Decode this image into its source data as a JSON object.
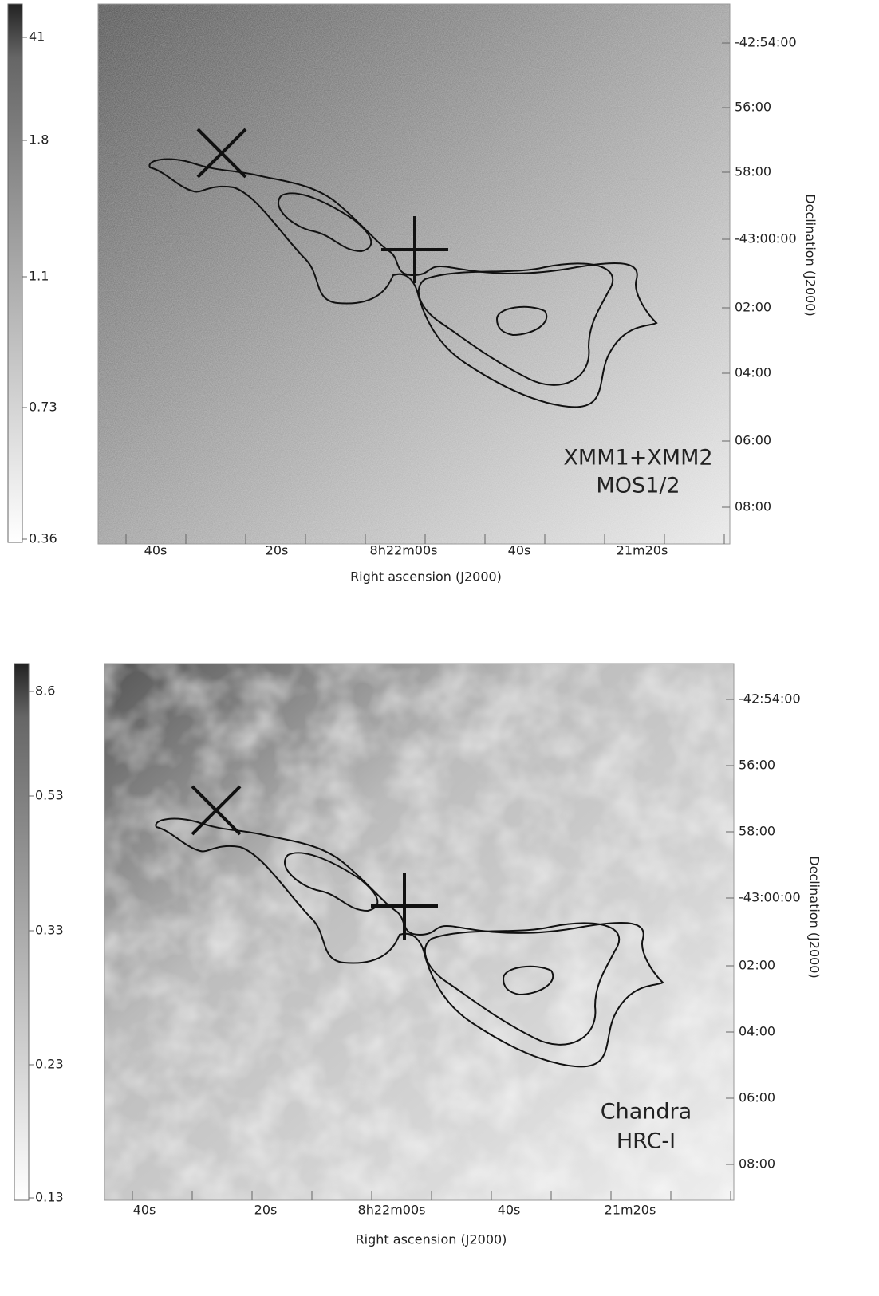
{
  "panels": [
    {
      "colorbar": [
        "41",
        "1.8",
        "1.1",
        "0.73",
        "0.36"
      ],
      "x_ticks": [
        "40s",
        "20s",
        "8h22m00s",
        "40s",
        "21m20s"
      ],
      "x_label": "Right ascension (J2000)",
      "y_ticks": [
        "-42:54:00",
        "56:00",
        "58:00",
        "-43:00:00",
        "02:00",
        "04:00",
        "06:00",
        "08:00"
      ],
      "y_label": "Declination (J2000)",
      "label": [
        "XMM1+XMM2",
        "MOS1/2"
      ]
    },
    {
      "colorbar": [
        "8.6",
        "0.53",
        "0.33",
        "0.23",
        "0.13"
      ],
      "x_ticks": [
        "40s",
        "20s",
        "8h22m00s",
        "40s",
        "21m20s"
      ],
      "x_label": "Right ascension (J2000)",
      "y_ticks": [
        "-42:54:00",
        "56:00",
        "58:00",
        "-43:00:00",
        "02:00",
        "04:00",
        "06:00",
        "08:00"
      ],
      "y_label": "Declination (J2000)",
      "label": [
        "Chandra",
        "HRC-I"
      ]
    }
  ]
}
